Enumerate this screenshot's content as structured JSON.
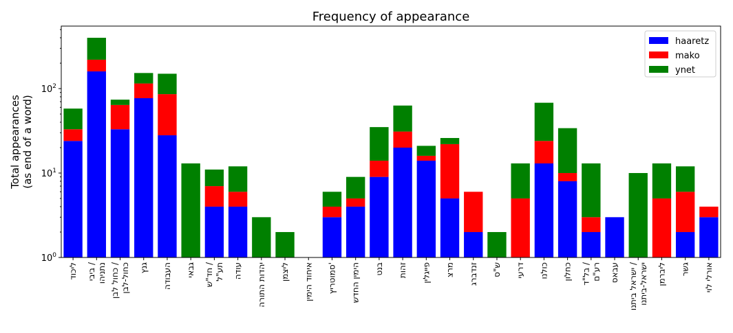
{
  "chart_data": {
    "type": "bar",
    "stacked": true,
    "title": "Frequency of appearance",
    "ylabel": [
      "Total appearances",
      "(as end of a word)"
    ],
    "xlabel": "",
    "yscale": "log",
    "ylim": [
      1,
      550
    ],
    "yticks": [
      {
        "value": 1,
        "base": "10",
        "exp": "0"
      },
      {
        "value": 10,
        "base": "10",
        "exp": "1"
      },
      {
        "value": 100,
        "base": "10",
        "exp": "2"
      }
    ],
    "legend": {
      "placement": "top-right"
    },
    "categories": [
      [
        "ליכוד"
      ],
      [
        "ביבי /",
        "נתניהו"
      ],
      [
        "כחול לבן /",
        "כחול-לבן"
      ],
      [
        "גנץ"
      ],
      [
        "העבודה"
      ],
      [
        "גבאי"
      ],
      [
        "חד\"ש /",
        "תע\"ל"
      ],
      [
        "עודה"
      ],
      [
        "יהדות התורה"
      ],
      [
        "ליצמן"
      ],
      [
        "איחוד הימין"
      ],
      [
        "סמוטריץ'"
      ],
      [
        "הימין החדש"
      ],
      [
        "בנט"
      ],
      [
        "זהות"
      ],
      [
        "פייגלין"
      ],
      [
        "מרצ"
      ],
      [
        "זנדברג"
      ],
      [
        "ש\"ס"
      ],
      [
        "דרעי"
      ],
      [
        "כולנו"
      ],
      [
        "כחלון"
      ],
      [
        "בל\"ד /",
        "רע\"ם"
      ],
      [
        "עבאס"
      ],
      [
        "ישראל ביתנו /",
        "ישראל-ביתנו"
      ],
      [
        "ליברמן"
      ],
      [
        "גשר"
      ],
      [
        "אורלי לוי"
      ]
    ],
    "series": [
      {
        "name": "haaretz",
        "color": "#0000ff",
        "values": [
          24,
          160,
          33,
          77,
          28,
          0,
          4,
          4,
          0,
          0,
          0,
          3,
          4,
          9,
          20,
          14,
          5,
          2,
          0,
          0,
          13,
          8,
          2,
          3,
          0,
          0,
          2,
          3
        ]
      },
      {
        "name": "mako",
        "color": "#ff0000",
        "values": [
          9,
          60,
          31,
          38,
          58,
          0,
          3,
          2,
          0,
          0,
          0,
          1,
          1,
          5,
          11,
          2,
          17,
          4,
          0,
          5,
          11,
          2,
          1,
          0,
          0,
          5,
          4,
          1
        ]
      },
      {
        "name": "ynet",
        "color": "#008000",
        "values": [
          25,
          180,
          10,
          38,
          64,
          13,
          4,
          6,
          3,
          2,
          0,
          2,
          4,
          21,
          32,
          5,
          4,
          0,
          2,
          8,
          44,
          24,
          10,
          0,
          10,
          8,
          6,
          0
        ]
      }
    ]
  }
}
